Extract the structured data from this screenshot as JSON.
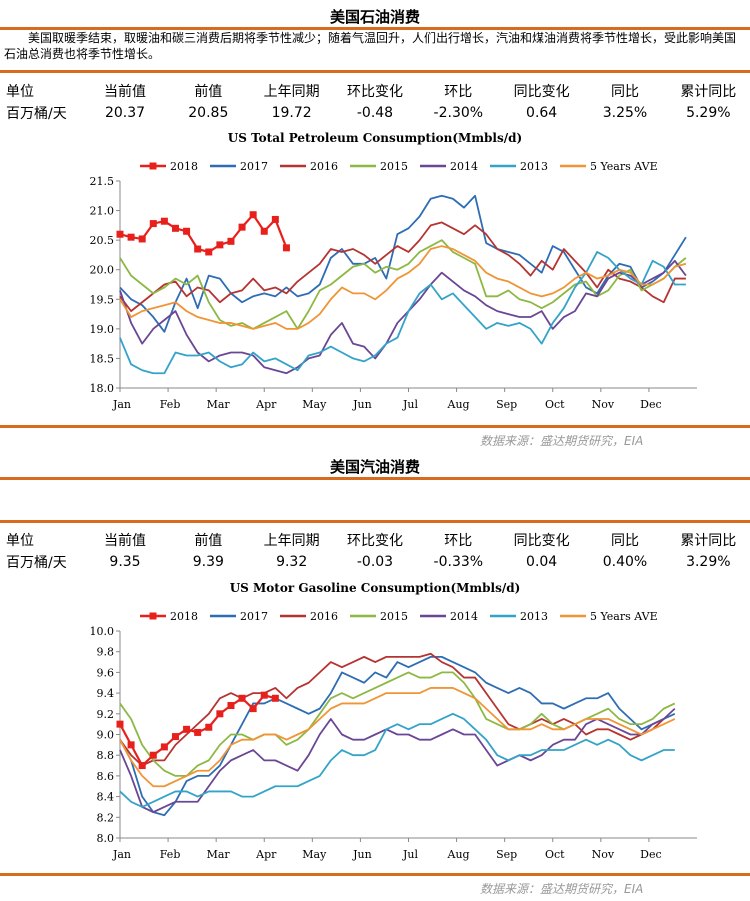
{
  "sections": [
    {
      "title": "美国石油消费",
      "description": "美国取暖季结束，取暖油和碳三消费后期将季节性减少；随着气温回升，人们出行增长，汽油和煤油消费将季节性增长，受此影响美国石油总消费也将季节性增长。",
      "table": {
        "headers": [
          "单位",
          "当前值",
          "前值",
          "上年同期",
          "环比变化",
          "环比",
          "同比变化",
          "同比",
          "累计同比"
        ],
        "row": [
          "百万桶/天",
          "20.37",
          "20.85",
          "19.72",
          "-0.48",
          "-2.30%",
          "0.64",
          "3.25%",
          "5.29%"
        ]
      },
      "source": "数据来源：盛达期货研究，EIA"
    },
    {
      "title": "美国汽油消费",
      "description": "",
      "table": {
        "headers": [
          "单位",
          "当前值",
          "前值",
          "上年同期",
          "环比变化",
          "环比",
          "同比变化",
          "同比",
          "累计同比"
        ],
        "row": [
          "百万桶/天",
          "9.35",
          "9.39",
          "9.32",
          "-0.03",
          "-0.33%",
          "0.04",
          "0.40%",
          "3.29%"
        ]
      },
      "source": "数据来源：盛达期货研究，EIA"
    }
  ],
  "chart_data": [
    {
      "type": "line",
      "title": "US Total Petroleum Consumption(Mmbls/d)",
      "xlabel": "",
      "ylabel": "",
      "x_ticks": [
        "Jan",
        "Feb",
        "Mar",
        "Apr",
        "May",
        "Jun",
        "Jul",
        "Aug",
        "Sep",
        "Oct",
        "Nov",
        "Dec"
      ],
      "x_range": [
        0,
        52
      ],
      "ylim": [
        18.0,
        21.5
      ],
      "y_ticks": [
        "18.0",
        "18.5",
        "19.0",
        "19.5",
        "20.0",
        "20.5",
        "21.0",
        "21.5"
      ],
      "legend_position": "top",
      "series": [
        {
          "name": "2018",
          "color": "#e8201c",
          "marker": true,
          "values": [
            20.6,
            20.55,
            20.52,
            20.78,
            20.82,
            20.7,
            20.65,
            20.35,
            20.3,
            20.42,
            20.48,
            20.72,
            20.93,
            20.65,
            20.85,
            20.37
          ]
        },
        {
          "name": "2017",
          "color": "#2e6db4",
          "values": [
            19.7,
            19.5,
            19.4,
            19.2,
            18.95,
            19.45,
            19.85,
            19.35,
            19.9,
            19.85,
            19.6,
            19.45,
            19.55,
            19.6,
            19.55,
            19.7,
            19.55,
            19.6,
            19.75,
            20.2,
            20.35,
            20.1,
            20.1,
            20.2,
            19.85,
            20.6,
            20.7,
            20.9,
            21.2,
            21.25,
            21.2,
            21.05,
            21.25,
            20.45,
            20.35,
            20.3,
            20.25,
            20.1,
            19.95,
            20.4,
            20.3,
            20.0,
            19.7,
            19.6,
            19.9,
            20.1,
            20.05,
            19.7,
            19.8,
            19.95,
            20.25,
            20.55
          ]
        },
        {
          "name": "2016",
          "color": "#b53431",
          "values": [
            19.55,
            19.3,
            19.45,
            19.6,
            19.75,
            19.8,
            19.55,
            19.7,
            19.65,
            19.45,
            19.6,
            19.65,
            19.85,
            19.65,
            19.7,
            19.6,
            19.8,
            19.95,
            20.1,
            20.35,
            20.3,
            20.35,
            20.25,
            20.1,
            20.25,
            20.4,
            20.3,
            20.5,
            20.75,
            20.8,
            20.7,
            20.6,
            20.75,
            20.6,
            20.35,
            20.25,
            20.1,
            19.9,
            20.15,
            20.0,
            20.35,
            20.15,
            19.95,
            19.7,
            20.0,
            19.85,
            19.8,
            19.7,
            19.55,
            19.45,
            19.85,
            19.85
          ]
        },
        {
          "name": "2015",
          "color": "#8db844",
          "values": [
            20.2,
            19.9,
            19.75,
            19.6,
            19.7,
            19.85,
            19.75,
            19.9,
            19.45,
            19.15,
            19.05,
            19.1,
            19.0,
            19.1,
            19.2,
            19.3,
            19.0,
            19.3,
            19.65,
            19.75,
            19.9,
            20.05,
            20.1,
            19.95,
            20.05,
            20.0,
            20.1,
            20.3,
            20.4,
            20.5,
            20.3,
            20.2,
            20.1,
            19.55,
            19.55,
            19.65,
            19.5,
            19.45,
            19.35,
            19.45,
            19.6,
            19.75,
            19.8,
            19.55,
            19.65,
            19.9,
            20.0,
            19.65,
            19.75,
            19.85,
            20.05,
            20.2
          ]
        },
        {
          "name": "2014",
          "color": "#6a4694",
          "values": [
            19.65,
            19.1,
            18.75,
            19.0,
            19.15,
            19.3,
            18.9,
            18.6,
            18.45,
            18.55,
            18.6,
            18.6,
            18.55,
            18.35,
            18.3,
            18.25,
            18.35,
            18.5,
            18.55,
            18.9,
            19.1,
            18.75,
            18.7,
            18.5,
            18.75,
            19.1,
            19.3,
            19.5,
            19.75,
            19.95,
            19.8,
            19.65,
            19.55,
            19.4,
            19.3,
            19.25,
            19.2,
            19.2,
            19.3,
            19.0,
            19.2,
            19.3,
            19.6,
            19.55,
            19.85,
            19.95,
            19.9,
            19.75,
            19.85,
            19.95,
            20.15,
            19.9
          ]
        },
        {
          "name": "2013",
          "color": "#33a3c8",
          "values": [
            18.85,
            18.4,
            18.3,
            18.25,
            18.25,
            18.6,
            18.55,
            18.55,
            18.6,
            18.45,
            18.35,
            18.4,
            18.6,
            18.45,
            18.5,
            18.4,
            18.3,
            18.55,
            18.6,
            18.7,
            18.6,
            18.5,
            18.45,
            18.55,
            18.75,
            18.85,
            19.3,
            19.6,
            19.75,
            19.5,
            19.6,
            19.4,
            19.2,
            19.0,
            19.1,
            19.05,
            19.1,
            19.0,
            18.75,
            19.1,
            19.35,
            19.7,
            19.95,
            20.3,
            20.2,
            20.0,
            19.85,
            19.75,
            20.15,
            20.05,
            19.75,
            19.75
          ]
        },
        {
          "name": "5 Years AVE",
          "color": "#f09435",
          "values": [
            19.5,
            19.2,
            19.3,
            19.35,
            19.4,
            19.45,
            19.3,
            19.2,
            19.15,
            19.1,
            19.1,
            19.05,
            19.0,
            19.05,
            19.1,
            19.0,
            19.0,
            19.1,
            19.25,
            19.5,
            19.7,
            19.6,
            19.6,
            19.5,
            19.65,
            19.85,
            19.95,
            20.1,
            20.35,
            20.4,
            20.35,
            20.25,
            20.15,
            19.95,
            19.85,
            19.8,
            19.7,
            19.6,
            19.55,
            19.6,
            19.7,
            19.85,
            19.95,
            19.85,
            19.9,
            20.0,
            19.95,
            19.75,
            19.75,
            19.85,
            20.05,
            20.1
          ]
        }
      ]
    },
    {
      "type": "line",
      "title": "US Motor Gasoline Consumption(Mmbls/d)",
      "xlabel": "",
      "ylabel": "",
      "x_ticks": [
        "Jan",
        "Feb",
        "Mar",
        "Apr",
        "May",
        "Jun",
        "Jul",
        "Aug",
        "Sep",
        "Oct",
        "Nov",
        "Dec"
      ],
      "x_range": [
        0,
        52
      ],
      "ylim": [
        8.0,
        10.0
      ],
      "y_ticks": [
        "8.0",
        "8.2",
        "8.4",
        "8.6",
        "8.8",
        "9.0",
        "9.2",
        "9.4",
        "9.6",
        "9.8",
        "10.0"
      ],
      "legend_position": "top",
      "series": [
        {
          "name": "2018",
          "color": "#e8201c",
          "marker": true,
          "values": [
            9.1,
            8.9,
            8.7,
            8.8,
            8.88,
            8.98,
            9.05,
            9.02,
            9.07,
            9.2,
            9.28,
            9.35,
            9.25,
            9.38,
            9.35
          ]
        },
        {
          "name": "2017",
          "color": "#2e6db4",
          "values": [
            8.95,
            8.75,
            8.4,
            8.25,
            8.22,
            8.35,
            8.55,
            8.6,
            8.6,
            8.7,
            8.9,
            9.1,
            9.3,
            9.3,
            9.35,
            9.3,
            9.25,
            9.2,
            9.25,
            9.4,
            9.6,
            9.55,
            9.5,
            9.6,
            9.55,
            9.7,
            9.65,
            9.7,
            9.75,
            9.75,
            9.7,
            9.65,
            9.6,
            9.5,
            9.45,
            9.4,
            9.45,
            9.4,
            9.3,
            9.3,
            9.25,
            9.3,
            9.35,
            9.35,
            9.4,
            9.25,
            9.15,
            9.05,
            9.1,
            9.15,
            9.2
          ]
        },
        {
          "name": "2016",
          "color": "#b53431",
          "values": [
            8.95,
            8.8,
            8.7,
            8.75,
            8.75,
            8.9,
            9.0,
            9.1,
            9.2,
            9.35,
            9.4,
            9.35,
            9.4,
            9.4,
            9.45,
            9.35,
            9.45,
            9.5,
            9.6,
            9.7,
            9.65,
            9.7,
            9.75,
            9.7,
            9.75,
            9.75,
            9.75,
            9.75,
            9.78,
            9.7,
            9.65,
            9.55,
            9.55,
            9.4,
            9.25,
            9.1,
            9.05,
            9.1,
            9.15,
            9.1,
            9.15,
            9.1,
            9.0,
            9.05,
            9.05,
            9.0,
            8.95,
            9.0,
            9.05,
            9.15
          ]
        },
        {
          "name": "2015",
          "color": "#8db844",
          "values": [
            9.3,
            9.15,
            8.9,
            8.75,
            8.65,
            8.6,
            8.6,
            8.7,
            8.75,
            8.9,
            9.0,
            9.0,
            8.95,
            9.0,
            9.0,
            8.9,
            8.95,
            9.05,
            9.2,
            9.35,
            9.4,
            9.35,
            9.4,
            9.45,
            9.5,
            9.55,
            9.6,
            9.55,
            9.55,
            9.6,
            9.6,
            9.5,
            9.35,
            9.15,
            9.1,
            9.05,
            9.05,
            9.1,
            9.2,
            9.1,
            9.05,
            9.1,
            9.15,
            9.2,
            9.25,
            9.15,
            9.1,
            9.1,
            9.15,
            9.25,
            9.3
          ]
        },
        {
          "name": "2014",
          "color": "#6a4694",
          "values": [
            8.85,
            8.6,
            8.3,
            8.25,
            8.3,
            8.35,
            8.35,
            8.35,
            8.5,
            8.65,
            8.75,
            8.8,
            8.85,
            8.75,
            8.75,
            8.7,
            8.65,
            8.8,
            9.0,
            9.15,
            9.0,
            8.95,
            8.95,
            9.0,
            9.05,
            9.0,
            9.0,
            8.95,
            8.95,
            9.0,
            9.05,
            9.0,
            9.0,
            8.85,
            8.7,
            8.75,
            8.8,
            8.75,
            8.8,
            8.9,
            8.95,
            8.95,
            9.1,
            9.15,
            9.1,
            9.05,
            9.0,
            9.0,
            9.1,
            9.15,
            9.25
          ]
        },
        {
          "name": "2013",
          "color": "#33a3c8",
          "values": [
            8.45,
            8.35,
            8.3,
            8.35,
            8.4,
            8.45,
            8.45,
            8.4,
            8.45,
            8.45,
            8.45,
            8.4,
            8.4,
            8.45,
            8.5,
            8.5,
            8.5,
            8.55,
            8.6,
            8.75,
            8.85,
            8.8,
            8.8,
            8.85,
            9.05,
            9.1,
            9.05,
            9.1,
            9.1,
            9.15,
            9.2,
            9.15,
            9.05,
            8.95,
            8.8,
            8.75,
            8.8,
            8.8,
            8.85,
            8.85,
            8.85,
            8.9,
            8.95,
            8.9,
            8.95,
            8.9,
            8.8,
            8.75,
            8.8,
            8.85,
            8.85
          ]
        },
        {
          "name": "5 Years AVE",
          "color": "#f09435",
          "values": [
            8.95,
            8.75,
            8.6,
            8.5,
            8.5,
            8.55,
            8.6,
            8.65,
            8.65,
            8.75,
            8.9,
            8.95,
            8.95,
            9.0,
            9.0,
            8.95,
            9.0,
            9.05,
            9.15,
            9.25,
            9.3,
            9.3,
            9.3,
            9.35,
            9.4,
            9.4,
            9.4,
            9.4,
            9.45,
            9.45,
            9.45,
            9.4,
            9.35,
            9.25,
            9.15,
            9.05,
            9.05,
            9.05,
            9.1,
            9.05,
            9.05,
            9.1,
            9.15,
            9.15,
            9.15,
            9.1,
            9.05,
            9.0,
            9.05,
            9.1,
            9.15
          ]
        }
      ]
    }
  ]
}
